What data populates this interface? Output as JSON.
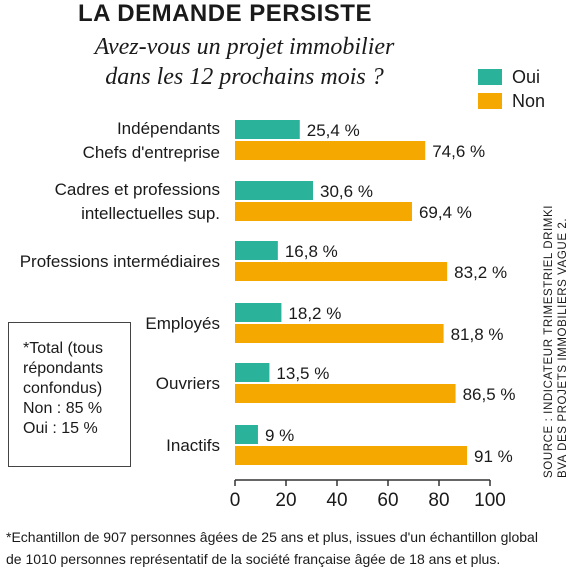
{
  "header": {
    "title": "LA DEMANDE PERSISTE",
    "subtitle_line1": "Avez-vous un projet immobilier",
    "subtitle_line2": "dans les 12 prochains mois ?"
  },
  "legend": {
    "oui": "Oui",
    "non": "Non"
  },
  "colors": {
    "oui": "#2ab39a",
    "non": "#f5a800",
    "axis": "#333333"
  },
  "source": {
    "line1": "SOURCE : INDICATEUR TRIMESTRIEL DRIMKI",
    "line2": "BVA DES PROJETS IMMOBILIERS VAGUE 2."
  },
  "note": {
    "line1": "*Total (tous",
    "line2": "répondants",
    "line3": "confondus)",
    "line4": "Non : 85 %",
    "line5": "Oui : 15 %"
  },
  "footnote": {
    "line1": "*Echantillon de 907 personnes âgées de 25 ans et plus, issues d'un échantillon global",
    "line2": "de 1010 personnes représentatif de la société française âgée de 18 ans et plus."
  },
  "chart_data": {
    "type": "bar",
    "orientation": "horizontal",
    "title": "LA DEMANDE PERSISTE",
    "subtitle": "Avez-vous un projet immobilier dans les 12 prochains mois ?",
    "categories": [
      [
        "Indépendants",
        "Chefs d'entreprise"
      ],
      [
        "Cadres et professions",
        "intellectuelles sup."
      ],
      [
        "Professions intermédiaires"
      ],
      [
        "Employés"
      ],
      [
        "Ouvriers"
      ],
      [
        "Inactifs"
      ]
    ],
    "series": [
      {
        "name": "Oui",
        "values": [
          25.4,
          30.6,
          16.8,
          18.2,
          13.5,
          9
        ],
        "labels": [
          "25,4 %",
          "30,6 %",
          "16,8 %",
          "18,2 %",
          "13,5 %",
          "9 %"
        ]
      },
      {
        "name": "Non",
        "values": [
          74.6,
          69.4,
          83.2,
          81.8,
          86.5,
          91
        ],
        "labels": [
          "74,6 %",
          "69,4 %",
          "83,2 %",
          "81,8 %",
          "86,5 %",
          "91 %"
        ]
      }
    ],
    "xlim": [
      0,
      100
    ],
    "xticks": [
      "0",
      "20",
      "40",
      "60",
      "80",
      "100"
    ],
    "legend_position": "top-right",
    "grid": false
  }
}
